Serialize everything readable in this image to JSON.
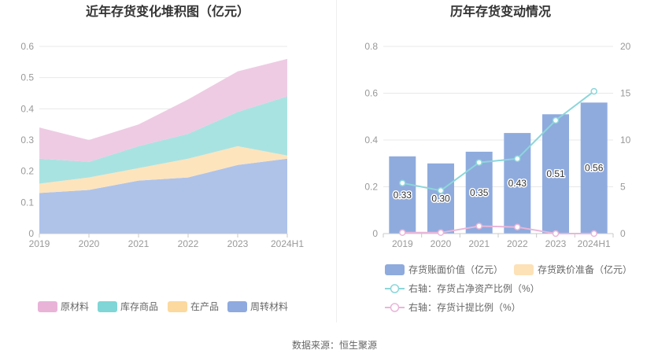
{
  "source": "数据来源：恒生聚源",
  "chart_data": [
    {
      "type": "area",
      "stacked": true,
      "title": "近年存货变化堆积图（亿元）",
      "categories": [
        "2019",
        "2020",
        "2021",
        "2022",
        "2023",
        "2024H1"
      ],
      "ylim": [
        0,
        0.6
      ],
      "yticks": [
        0,
        0.1,
        0.2,
        0.3,
        0.4,
        0.5,
        0.6
      ],
      "grid": true,
      "legend": "bottom",
      "series": [
        {
          "name": "原材料",
          "values": [
            0.1,
            0.07,
            0.07,
            0.11,
            0.13,
            0.12
          ],
          "color": "#eecbe3",
          "legend_color": "#e9b3d8"
        },
        {
          "name": "库存商品",
          "values": [
            0.08,
            0.05,
            0.07,
            0.08,
            0.11,
            0.19
          ],
          "color": "#a9e3e1",
          "legend_color": "#80d6d6"
        },
        {
          "name": "在产品",
          "values": [
            0.03,
            0.04,
            0.04,
            0.06,
            0.06,
            0.01
          ],
          "color": "#fde4bd",
          "legend_color": "#fcd99f"
        },
        {
          "name": "周转材料",
          "values": [
            0.13,
            0.14,
            0.17,
            0.18,
            0.22,
            0.24
          ],
          "color": "#afc3e9",
          "legend_color": "#8eaadf"
        }
      ]
    },
    {
      "type": "bar+line",
      "title": "历年存货变动情况",
      "categories": [
        "2019",
        "2020",
        "2021",
        "2022",
        "2023",
        "2024H1"
      ],
      "ylim": [
        0,
        0.8
      ],
      "yticks": [
        0,
        0.2,
        0.4,
        0.6,
        0.8
      ],
      "y2lim": [
        0,
        20
      ],
      "y2ticks": [
        0,
        5,
        10,
        15,
        20
      ],
      "grid": true,
      "legend": "bottom",
      "series": [
        {
          "name": "存货账面价值（亿元）",
          "type": "bar",
          "axis": "left",
          "values": [
            0.33,
            0.3,
            0.35,
            0.43,
            0.51,
            0.56
          ],
          "labels": [
            "0.33",
            "0.30",
            "0.35",
            "0.43",
            "0.51",
            "0.56"
          ],
          "color": "#8fabde"
        },
        {
          "name": "存货跌价准备（亿元）",
          "type": "bar",
          "axis": "left",
          "color": "#fde2b8"
        },
        {
          "name": "右轴：存货占净资产比例（%）",
          "type": "line",
          "axis": "right",
          "values": [
            5.4,
            4.6,
            7.6,
            8.0,
            12.1,
            15.2
          ],
          "color": "#8cd6da"
        },
        {
          "name": "右轴：存货计提比例（%）",
          "type": "line",
          "axis": "right",
          "values": [
            0.1,
            0.1,
            0.8,
            0.7,
            0.0,
            0.0
          ],
          "color": "#e9b6d9"
        }
      ]
    }
  ]
}
